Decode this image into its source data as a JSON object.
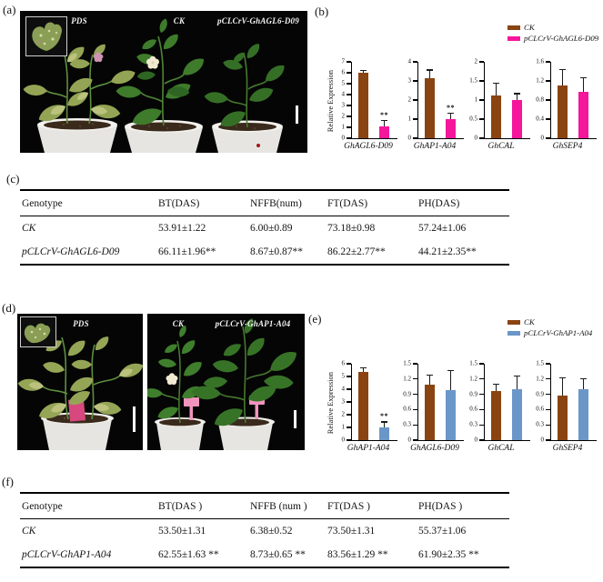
{
  "panel_a": {
    "label": "(a)",
    "plant_labels": {
      "pds": "PDS",
      "ck": "CK",
      "gene": "pCLCrV-GhAGL6-D09"
    }
  },
  "panel_b": {
    "label": "(b)",
    "legend": {
      "ck": "CK",
      "treatment": "pCLCrV-GhAGL6-D09"
    }
  },
  "panel_c": {
    "label": "(c)",
    "table": {
      "headers": [
        "Genotype",
        "BT(DAS)",
        "NFFB(num)",
        "FT(DAS)",
        "PH(DAS)"
      ],
      "rows": [
        [
          "CK",
          "53.91±1.22",
          "6.00±0.89",
          "73.18±0.98",
          "57.24±1.06"
        ],
        [
          "pCLCrV-GhAGL6-D09",
          "66.11±1.96**",
          "8.67±0.87**",
          "86.22±2.77**",
          "44.21±2.35**"
        ]
      ]
    }
  },
  "panel_d": {
    "label": "(d)",
    "plant_labels": {
      "pds": "PDS",
      "ck": "CK",
      "gene": "pCLCrV-GhAP1-A04"
    }
  },
  "panel_e": {
    "label": "(e)",
    "legend": {
      "ck": "CK",
      "treatment": "pCLCrV-GhAP1-A04"
    }
  },
  "panel_f": {
    "label": "(f)",
    "table": {
      "headers": [
        "Genotype",
        "BT(DAS )",
        "NFFB (num )",
        "FT(DAS )",
        "PH(DAS )"
      ],
      "rows": [
        [
          "CK",
          "53.50±1.31",
          "6.38±0.52",
          "73.50±1.31",
          "55.37±1.06"
        ],
        [
          "pCLCrV-GhAP1-A04",
          "62.55±1.63 **",
          "8.73±0.65 **",
          "83.56±1.29 **",
          "61.90±2.35 **"
        ]
      ]
    }
  },
  "colors": {
    "ck_brown": "#8a4412",
    "treatment_pink": "#f5169c",
    "treatment_blue": "#6b96c8"
  },
  "chart_data": [
    {
      "panel": "b",
      "type": "bar",
      "ylabel": "Relative Expression",
      "legend_position": "top-right",
      "series": [
        {
          "name": "CK",
          "color": "#8a4412"
        },
        {
          "name": "pCLCrV-GhAGL6-D09",
          "color": "#f5169c"
        }
      ],
      "subplots": [
        {
          "gene": "GhAGL6-D09",
          "ylim": [
            0,
            7
          ],
          "yticks": [
            "0",
            "1",
            "2",
            "3",
            "4",
            "5",
            "6",
            "7"
          ],
          "values": [
            6.0,
            1.05
          ],
          "errors": [
            0.25,
            0.65
          ],
          "sig": [
            null,
            "**"
          ]
        },
        {
          "gene": "GhAP1-A04",
          "ylim": [
            0,
            4
          ],
          "yticks": [
            "0",
            "1",
            "2",
            "3",
            "4"
          ],
          "values": [
            3.15,
            1.0
          ],
          "errors": [
            0.45,
            0.35
          ],
          "sig": [
            null,
            "**"
          ]
        },
        {
          "gene": "GhCAL",
          "ylim": [
            0,
            2
          ],
          "yticks": [
            "0",
            "0.5",
            "1",
            "1.5",
            "2"
          ],
          "values": [
            1.12,
            1.0
          ],
          "errors": [
            0.34,
            0.18
          ],
          "sig": [
            null,
            null
          ]
        },
        {
          "gene": "GhSEP4",
          "ylim": [
            0,
            1.6
          ],
          "yticks": [
            "0",
            "0.4",
            "0.8",
            "1.2",
            "1.6"
          ],
          "values": [
            1.1,
            0.98
          ],
          "errors": [
            0.35,
            0.3
          ],
          "sig": [
            null,
            null
          ]
        }
      ]
    },
    {
      "panel": "e",
      "type": "bar",
      "ylabel": "Relative Expression",
      "legend_position": "top-right",
      "series": [
        {
          "name": "CK",
          "color": "#8a4412"
        },
        {
          "name": "pCLCrV-GhAP1-A04",
          "color": "#6b96c8"
        }
      ],
      "subplots": [
        {
          "gene": "GhAP1-A04",
          "ylim": [
            0,
            6
          ],
          "yticks": [
            "0",
            "1",
            "2",
            "3",
            "4",
            "5",
            "6"
          ],
          "values": [
            5.35,
            0.97
          ],
          "errors": [
            0.35,
            0.5
          ],
          "sig": [
            null,
            "**"
          ]
        },
        {
          "gene": "GhAGL6-D09",
          "ylim": [
            0,
            1.5
          ],
          "yticks": [
            "0",
            "0.3",
            "0.6",
            "0.9",
            "1.2",
            "1.5"
          ],
          "values": [
            1.09,
            0.99
          ],
          "errors": [
            0.19,
            0.38
          ],
          "sig": [
            null,
            null
          ]
        },
        {
          "gene": "GhCAL",
          "ylim": [
            0,
            1.5
          ],
          "yticks": [
            "0",
            "0.3",
            "0.6",
            "0.9",
            "1.2",
            "1.5"
          ],
          "values": [
            0.96,
            1.0
          ],
          "errors": [
            0.15,
            0.27
          ],
          "sig": [
            null,
            null
          ]
        },
        {
          "gene": "GhSEP4",
          "ylim": [
            0,
            1.5
          ],
          "yticks": [
            "0",
            "0.3",
            "0.6",
            "0.9",
            "1.2",
            "1.5"
          ],
          "values": [
            0.88,
            1.0
          ],
          "errors": [
            0.35,
            0.22
          ],
          "sig": [
            null,
            null
          ]
        }
      ]
    }
  ]
}
